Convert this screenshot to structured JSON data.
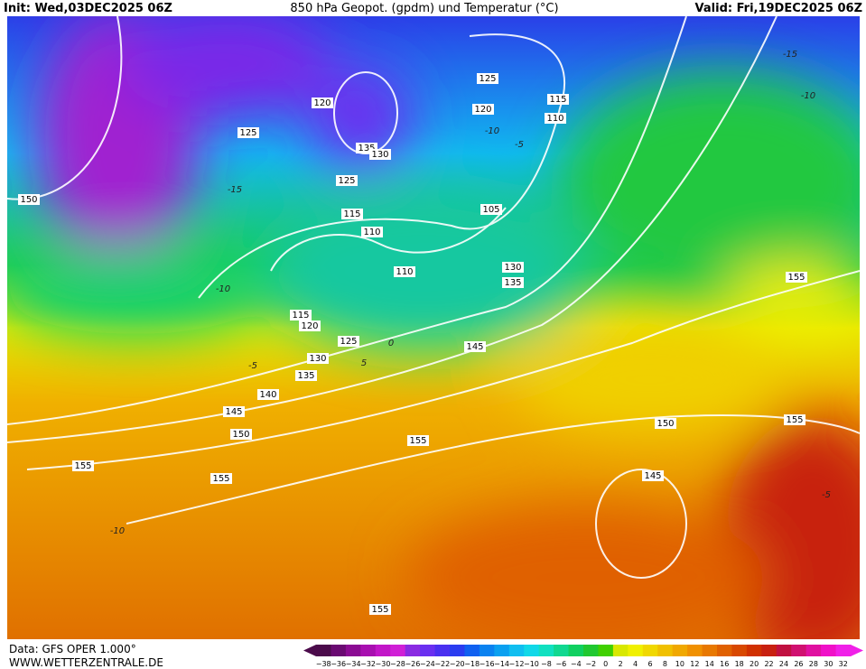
{
  "header": {
    "init": "Init: Wed,03DEC2025 06Z",
    "title": "850 hPa Geopot. (gpdm) und Temperatur (°C)",
    "valid": "Valid: Fri,19DEC2025 06Z"
  },
  "map_labels": [
    "150",
    "125",
    "120",
    "125",
    "135",
    "130",
    "125",
    "120",
    "115",
    "110",
    "115",
    "110",
    "105",
    "110",
    "115",
    "120",
    "125",
    "130",
    "135",
    "130",
    "135",
    "145",
    "140",
    "145",
    "150",
    "155",
    "155",
    "155",
    "150",
    "155",
    "145",
    "155",
    "155",
    "-15",
    "-10",
    "-5",
    "0",
    "5",
    "-5",
    "-10",
    "-10",
    "-15",
    "-10",
    "-5"
  ],
  "footer": {
    "source": "Data: GFS OPER 1.000°",
    "site": "WWW.WETTERZENTRALE.DE"
  },
  "colorbar": {
    "labels": [
      "−38",
      "−36",
      "−34",
      "−32",
      "−30",
      "−28",
      "−26",
      "−24",
      "−22",
      "−20",
      "−18",
      "−16",
      "−14",
      "−12",
      "−10",
      "−8",
      "−6",
      "−4",
      "−2",
      "0",
      "2",
      "4",
      "6",
      "8",
      "10",
      "12",
      "14",
      "16",
      "18",
      "20",
      "22",
      "24",
      "26",
      "28",
      "30",
      "32"
    ],
    "colors": [
      "#4b0b4b",
      "#6a0a72",
      "#8b0b93",
      "#a80fb0",
      "#c216c8",
      "#d020d6",
      "#8a2be2",
      "#6a2ff0",
      "#4a30f0",
      "#2a3cf0",
      "#1060f0",
      "#0a82f0",
      "#0aa0f0",
      "#10bef0",
      "#10d8e8",
      "#10e0c0",
      "#10d890",
      "#10d060",
      "#20c830",
      "#40d000",
      "#d8e800",
      "#f0f000",
      "#f0d800",
      "#f0c000",
      "#f0a800",
      "#f09000",
      "#e87800",
      "#e06000",
      "#d84800",
      "#d03000",
      "#c82010",
      "#c01040",
      "#d01070",
      "#e010a0",
      "#f010c8",
      "#f020e8"
    ]
  }
}
